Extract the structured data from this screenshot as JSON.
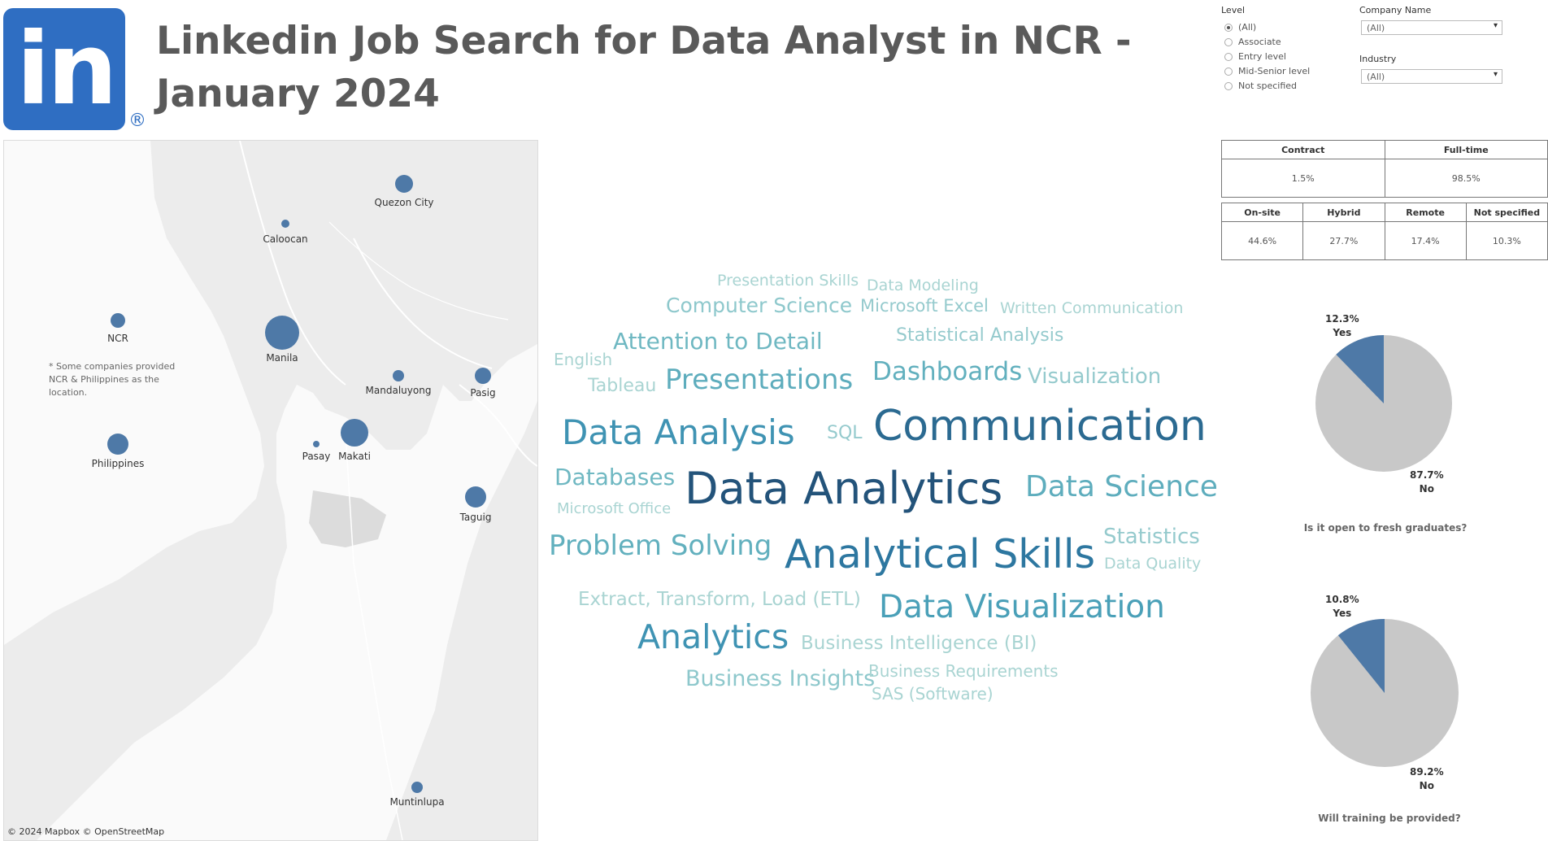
{
  "logo": {
    "text": "in",
    "registered": "®"
  },
  "title": "Linkedin Job Search for Data Analyst in NCR - January 2024",
  "map": {
    "cities": [
      {
        "name": "Quezon City"
      },
      {
        "name": "Caloocan"
      },
      {
        "name": "NCR"
      },
      {
        "name": "Manila"
      },
      {
        "name": "Mandaluyong"
      },
      {
        "name": "Pasig"
      },
      {
        "name": "Pasay"
      },
      {
        "name": "Makati"
      },
      {
        "name": "Philippines"
      },
      {
        "name": "Taguig"
      },
      {
        "name": "Muntinlupa"
      }
    ],
    "note": "* Some companies provided NCR & Philippines as the location.",
    "attribution": "© 2024 Mapbox © OpenStreetMap",
    "colors": {
      "bubble": "#4e79a7",
      "land": "#ececec",
      "water": "#fafafa"
    }
  },
  "word_cloud": [
    {
      "text": "Presentation Skills",
      "color": "#a9d4d2"
    },
    {
      "text": "Data Modeling",
      "color": "#a9d4d2"
    },
    {
      "text": "Computer Science",
      "color": "#8ec8cc"
    },
    {
      "text": "Microsoft Excel",
      "color": "#95cacd"
    },
    {
      "text": "Written Communication",
      "color": "#a9d4d2"
    },
    {
      "text": "Attention to Detail",
      "color": "#6fb8c2"
    },
    {
      "text": "Statistical Analysis",
      "color": "#95cacd"
    },
    {
      "text": "English",
      "color": "#a9d4d2"
    },
    {
      "text": "Presentations",
      "color": "#5eadbd"
    },
    {
      "text": "Dashboards",
      "color": "#62b0be"
    },
    {
      "text": "Visualization",
      "color": "#95cacd"
    },
    {
      "text": "Tableau",
      "color": "#a9d4d2"
    },
    {
      "text": "Data Analysis",
      "color": "#3f93b3"
    },
    {
      "text": "SQL",
      "color": "#95cacd"
    },
    {
      "text": "Communication",
      "color": "#2b6a91"
    },
    {
      "text": "Databases",
      "color": "#6fb8c2"
    },
    {
      "text": "Data Analytics",
      "color": "#23537a"
    },
    {
      "text": "Data Science",
      "color": "#5eadbd"
    },
    {
      "text": "Microsoft Office",
      "color": "#a9d4d2"
    },
    {
      "text": "Problem Solving",
      "color": "#62b0be"
    },
    {
      "text": "Analytical Skills",
      "color": "#2d77a0"
    },
    {
      "text": "Statistics",
      "color": "#95cacd"
    },
    {
      "text": "Data Quality",
      "color": "#a9d4d2"
    },
    {
      "text": "Extract, Transform, Load (ETL)",
      "color": "#a9d4d2"
    },
    {
      "text": "Data Visualization",
      "color": "#4aa0b8"
    },
    {
      "text": "Analytics",
      "color": "#3f93b3"
    },
    {
      "text": "Business Intelligence (BI)",
      "color": "#a9d4d2"
    },
    {
      "text": "Business Insights",
      "color": "#8ec8cc"
    },
    {
      "text": "Business Requirements",
      "color": "#a9d4d2"
    },
    {
      "text": "SAS (Software)",
      "color": "#a9d4d2"
    }
  ],
  "filters": {
    "level": {
      "title": "Level",
      "options": [
        "(All)",
        "Associate",
        "Entry level",
        "Mid-Senior level",
        "Not specified"
      ],
      "selected": "(All)"
    },
    "company": {
      "title": "Company Name",
      "value": "(All)"
    },
    "industry": {
      "title": "Industry",
      "value": "(All)"
    }
  },
  "employment_type": {
    "headers": [
      "Contract",
      "Full-time"
    ],
    "values": [
      "1.5%",
      "98.5%"
    ]
  },
  "workplace_type": {
    "headers": [
      "On-site",
      "Hybrid",
      "Remote",
      "Not specified"
    ],
    "values": [
      "44.6%",
      "27.7%",
      "17.4%",
      "10.3%"
    ]
  },
  "pies": [
    {
      "question": "Is it open to fresh graduates?",
      "yes_pct": "12.3%",
      "yes_label": "Yes",
      "no_pct": "87.7%",
      "no_label": "No",
      "yes_value": 12.3
    },
    {
      "question": "Will training be provided?",
      "yes_pct": "10.8%",
      "yes_label": "Yes",
      "no_pct": "89.2%",
      "no_label": "No",
      "yes_value": 10.8
    }
  ],
  "pie_colors": {
    "yes": "#4e79a7",
    "no": "#c8c8c8"
  }
}
